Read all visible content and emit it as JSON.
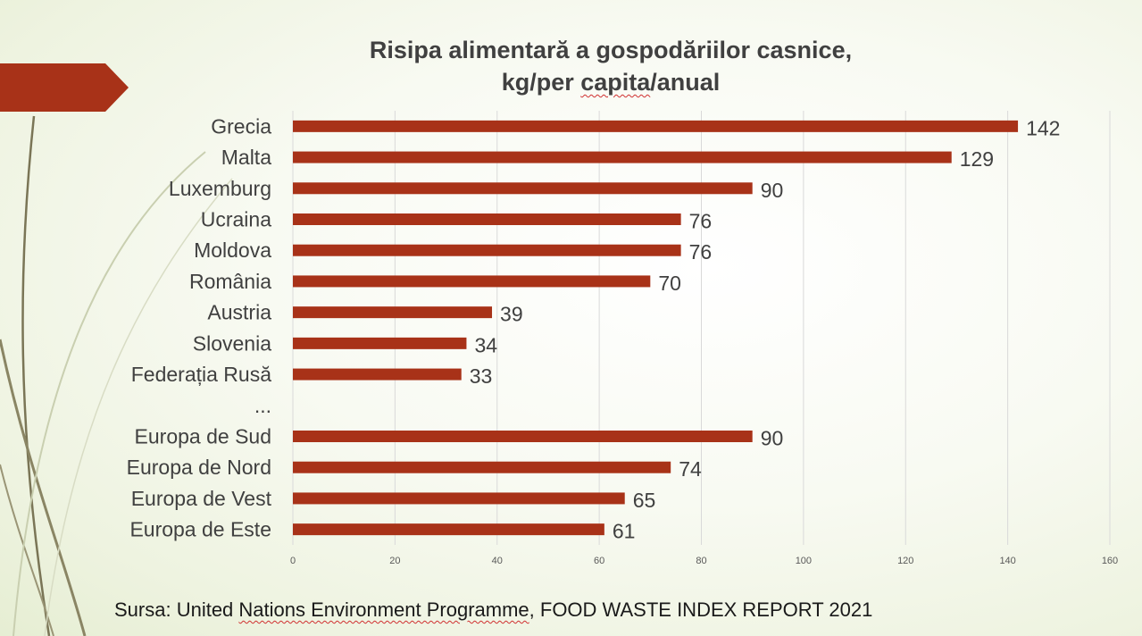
{
  "title_line1": "Risipa alimentară a gospodăriilor casnice,",
  "title_line2_pre": "kg/per ",
  "title_line2_sq": "capita",
  "title_line2_post": "/anual",
  "source_pre": "Sursa: United ",
  "source_sq1": "Nations Environment Programme",
  "source_post": ", FOOD WASTE INDEX REPORT 2021",
  "colors": {
    "bar": "#a83218",
    "accent_arrow": "#a83218",
    "deco_line": "#7a7556"
  },
  "chart_data": {
    "type": "bar",
    "orientation": "horizontal",
    "categories": [
      "Grecia",
      "Malta",
      "Luxemburg",
      "Ucraina",
      "Moldova",
      "România",
      "Austria",
      "Slovenia",
      "Federația Rusă",
      "...",
      "Europa de Sud",
      "Europa de Nord",
      "Europa de Vest",
      "Europa de Este"
    ],
    "values": [
      142,
      129,
      90,
      76,
      76,
      70,
      39,
      34,
      33,
      null,
      90,
      74,
      65,
      61
    ],
    "xlim": [
      0,
      160
    ],
    "xticks": [
      "0",
      "20",
      "40",
      "60",
      "80",
      "100",
      "120",
      "140",
      "160"
    ],
    "grid": "vertical",
    "legend": "none"
  }
}
